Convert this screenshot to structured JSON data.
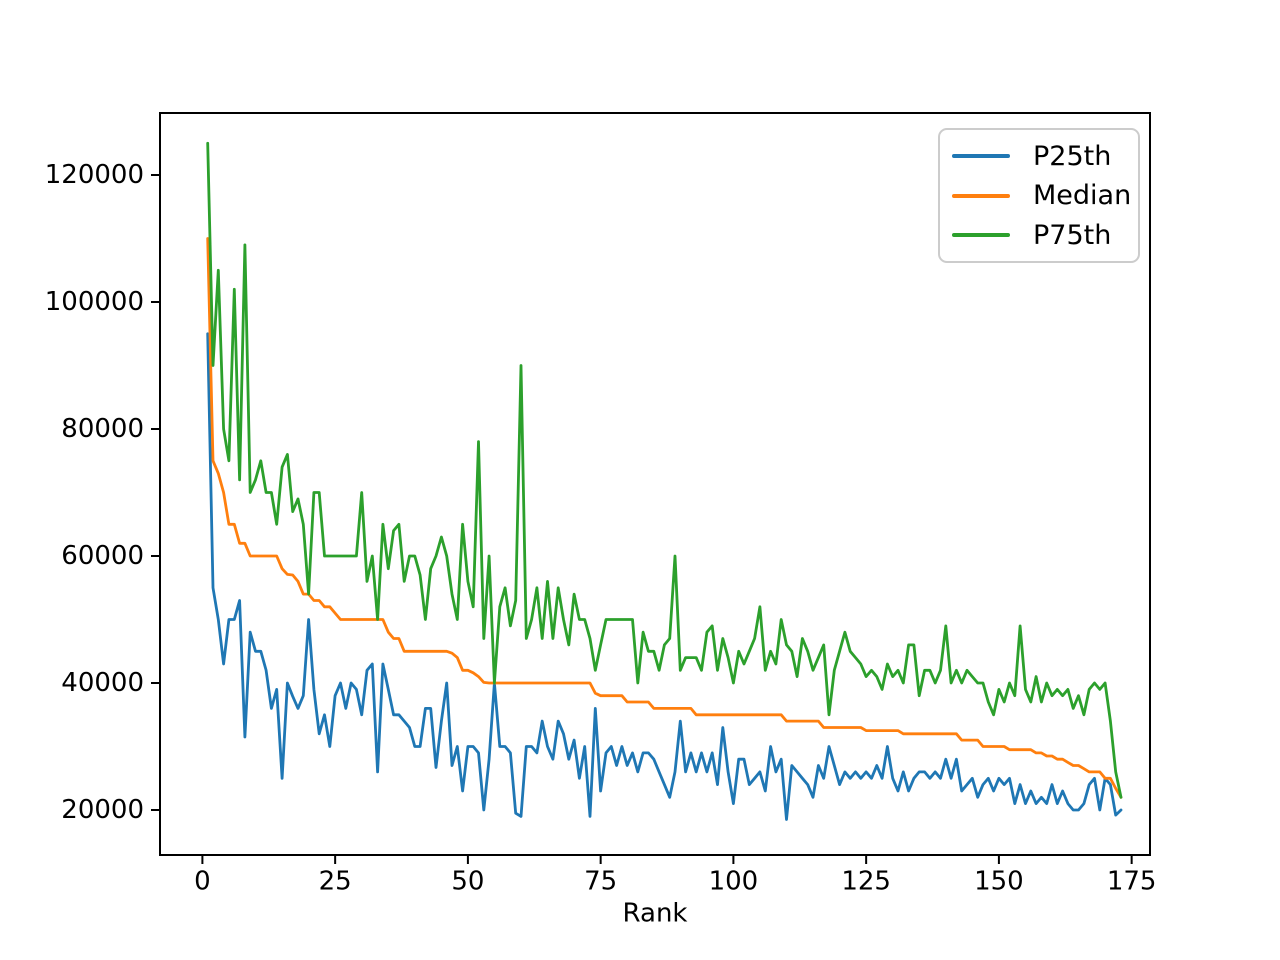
{
  "figure": {
    "background": "#ffffff"
  },
  "axes": {
    "spine_color": "#000000",
    "tick_color": "#000000",
    "text_color": "#000000"
  },
  "legend": {
    "position": "upper right"
  },
  "chart_data": {
    "type": "line",
    "title": "",
    "xlabel": "Rank",
    "ylabel": "",
    "x_range": [
      1,
      173
    ],
    "x_ticks": [
      0,
      25,
      50,
      75,
      100,
      125,
      150,
      175
    ],
    "y_ticks": [
      20000,
      40000,
      60000,
      80000,
      100000,
      120000
    ],
    "xlim": [
      -8,
      181.6
    ],
    "ylim": [
      12900,
      129800
    ],
    "grid": false,
    "legend_position": "upper right",
    "series": [
      {
        "name": "P25th",
        "color": "#1f77b4",
        "values": [
          95000,
          55000,
          50000,
          43000,
          50000,
          50000,
          53000,
          31500,
          48000,
          45000,
          45000,
          42000,
          36000,
          39000,
          25000,
          40000,
          37900,
          36000,
          38000,
          50000,
          39000,
          32000,
          35000,
          30000,
          38000,
          40000,
          36000,
          40000,
          39000,
          35000,
          42000,
          43000,
          26000,
          43000,
          39000,
          35000,
          35000,
          34000,
          33000,
          30000,
          30000,
          36000,
          36000,
          26700,
          34000,
          40000,
          27000,
          30000,
          23000,
          30000,
          30000,
          29000,
          20000,
          28000,
          40000,
          30000,
          30000,
          29000,
          19500,
          19000,
          30000,
          30000,
          29000,
          34000,
          30000,
          28000,
          34000,
          32000,
          28000,
          31000,
          25000,
          30000,
          19000,
          36000,
          23000,
          29000,
          30000,
          27000,
          30000,
          27000,
          29000,
          26000,
          29000,
          29000,
          28000,
          26000,
          24000,
          22000,
          26000,
          34000,
          26000,
          29000,
          26000,
          29000,
          26000,
          29000,
          24000,
          33000,
          26000,
          21000,
          28000,
          28000,
          24000,
          25000,
          26000,
          23000,
          30000,
          26000,
          28000,
          18500,
          27000,
          26000,
          25000,
          24000,
          22000,
          27000,
          25000,
          30000,
          27000,
          24000,
          26000,
          25000,
          26000,
          25000,
          26000,
          25000,
          27000,
          25000,
          30000,
          25000,
          23000,
          26000,
          23000,
          25000,
          26000,
          26000,
          25000,
          26000,
          25000,
          28000,
          25000,
          28000,
          23000,
          24000,
          25000,
          22000,
          24000,
          25000,
          23000,
          25000,
          24000,
          25000,
          21000,
          24000,
          21000,
          23000,
          21000,
          22000,
          21000,
          24000,
          21000,
          23000,
          21000,
          20000,
          20000,
          21000,
          24000,
          25000,
          20000,
          25000,
          24000,
          19200,
          20000
        ]
      },
      {
        "name": "Median",
        "color": "#ff7f0e",
        "values": [
          110000,
          75000,
          73000,
          70000,
          65000,
          65000,
          62000,
          62000,
          60000,
          60000,
          60000,
          60000,
          60000,
          60000,
          58000,
          57100,
          57000,
          56000,
          54000,
          54000,
          53000,
          53000,
          52000,
          52000,
          51000,
          50000,
          50000,
          50000,
          50000,
          50000,
          50000,
          50000,
          50000,
          50000,
          48000,
          47000,
          47000,
          45000,
          45000,
          45000,
          45000,
          45000,
          45000,
          45000,
          45000,
          45000,
          44700,
          44000,
          42000,
          42000,
          41600,
          41000,
          40100,
          40000,
          40000,
          40000,
          40000,
          40000,
          40000,
          40000,
          40000,
          40000,
          40000,
          40000,
          40000,
          40000,
          40000,
          40000,
          40000,
          40000,
          40000,
          40000,
          40000,
          38400,
          38000,
          38000,
          38000,
          38000,
          38000,
          37000,
          37000,
          37000,
          37000,
          37000,
          36000,
          36000,
          36000,
          36000,
          36000,
          36000,
          36000,
          36000,
          35000,
          35000,
          35000,
          35000,
          35000,
          35000,
          35000,
          35000,
          35000,
          35000,
          35000,
          35000,
          35000,
          35000,
          35000,
          35000,
          35000,
          34000,
          34000,
          34000,
          34000,
          34000,
          34000,
          34000,
          33000,
          33000,
          33000,
          33000,
          33000,
          33000,
          33000,
          33000,
          32500,
          32500,
          32500,
          32500,
          32500,
          32500,
          32500,
          32000,
          32000,
          32000,
          32000,
          32000,
          32000,
          32000,
          32000,
          32000,
          32000,
          32000,
          31000,
          31000,
          31000,
          31000,
          30000,
          30000,
          30000,
          30000,
          30000,
          29500,
          29500,
          29500,
          29500,
          29500,
          29000,
          29000,
          28500,
          28500,
          28000,
          28000,
          27500,
          27000,
          27000,
          26500,
          26000,
          26000,
          26000,
          25000,
          25000,
          23400,
          22000
        ]
      },
      {
        "name": "P75th",
        "color": "#2ca02c",
        "values": [
          125000,
          90000,
          105000,
          80000,
          75000,
          102000,
          72000,
          109000,
          70000,
          72000,
          75000,
          70000,
          70000,
          65000,
          74000,
          76000,
          67000,
          69000,
          65000,
          54000,
          70000,
          70000,
          60000,
          60000,
          60000,
          60000,
          60000,
          60000,
          60000,
          70000,
          56000,
          60000,
          50000,
          65000,
          58000,
          64000,
          65000,
          56000,
          60000,
          60000,
          57000,
          50000,
          58000,
          60000,
          63000,
          60000,
          54000,
          50000,
          65000,
          56000,
          52000,
          78000,
          47000,
          60000,
          40000,
          52000,
          55000,
          49000,
          53000,
          90000,
          47000,
          50000,
          55000,
          47000,
          56000,
          47000,
          55000,
          50000,
          46000,
          54000,
          50000,
          50000,
          47000,
          42000,
          46000,
          50000,
          50000,
          50000,
          50000,
          50000,
          50000,
          40000,
          48000,
          45000,
          45000,
          42000,
          46000,
          47000,
          60000,
          42000,
          44000,
          44000,
          44000,
          42000,
          48000,
          49000,
          42000,
          47000,
          44000,
          40000,
          45000,
          43000,
          45000,
          47000,
          52000,
          42000,
          45000,
          43000,
          50000,
          46000,
          45000,
          41000,
          47000,
          45000,
          42000,
          44000,
          46000,
          35000,
          42000,
          45000,
          48000,
          45000,
          44000,
          43000,
          41000,
          42000,
          41000,
          39000,
          43000,
          41000,
          42000,
          40000,
          46000,
          46000,
          38000,
          42000,
          42000,
          40000,
          42000,
          49000,
          40000,
          42000,
          40000,
          42000,
          41000,
          40000,
          40000,
          37000,
          35000,
          39000,
          37000,
          40000,
          38000,
          49000,
          39000,
          37000,
          41000,
          37000,
          40000,
          38000,
          39000,
          38000,
          39000,
          36000,
          38000,
          35000,
          39000,
          40000,
          39000,
          40000,
          34000,
          26000,
          22000
        ]
      }
    ]
  }
}
